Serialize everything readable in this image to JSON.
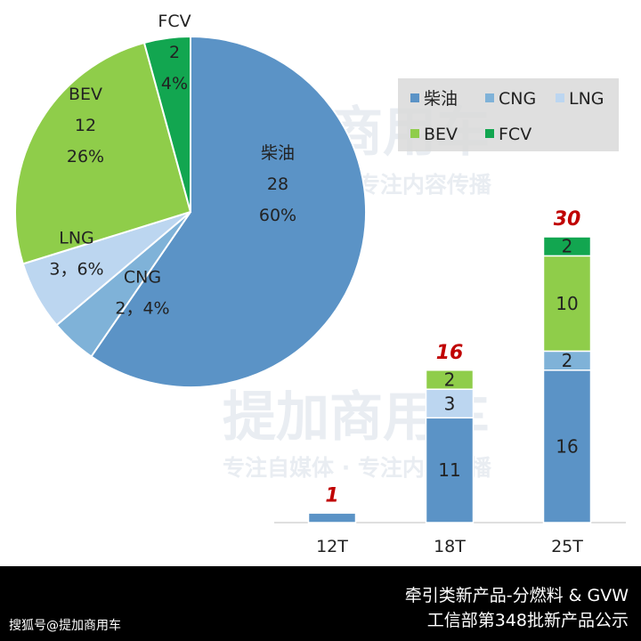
{
  "watermark": {
    "brand": "提加商用车",
    "slogan": "专注自媒体 · 专注内容传播"
  },
  "footer": {
    "line1": "牵引类新产品-分燃料 & GVW",
    "line2": "工信部第348批新产品公示",
    "credit": "搜狐号@提加商用车",
    "background": "#000000"
  },
  "chart_data": [
    {
      "type": "pie",
      "slices": [
        {
          "name": "柴油",
          "value": 28,
          "percent": "60%",
          "label_lines": [
            "柴油",
            "28",
            "60%"
          ],
          "color": "#5b93c6"
        },
        {
          "name": "CNG",
          "value": 2,
          "percent": "4%",
          "label_lines": [
            "CNG",
            "2，4%"
          ],
          "color": "#7fb2d8"
        },
        {
          "name": "LNG",
          "value": 3,
          "percent": "6%",
          "label_lines": [
            "LNG",
            "3，6%"
          ],
          "color": "#bcd6f0"
        },
        {
          "name": "BEV",
          "value": 12,
          "percent": "26%",
          "label_lines": [
            "BEV",
            "12",
            "26%"
          ],
          "color": "#8fcd4a"
        },
        {
          "name": "FCV",
          "value": 2,
          "percent": "4%",
          "label_lines": [
            "FCV",
            "2",
            "4%"
          ],
          "color": "#12a650"
        }
      ],
      "legend": {
        "placement": "top-right",
        "entries": [
          "柴油",
          "CNG",
          "LNG",
          "BEV",
          "FCV"
        ],
        "colors": [
          "#5b93c6",
          "#7fb2d8",
          "#bcd6f0",
          "#8fcd4a",
          "#12a650"
        ]
      }
    },
    {
      "type": "bar",
      "stacked": true,
      "categories": [
        "12T",
        "18T",
        "25T"
      ],
      "series": [
        {
          "name": "柴油",
          "values": [
            1,
            11,
            16
          ],
          "labels": [
            "",
            "11",
            "16"
          ],
          "color": "#5b93c6"
        },
        {
          "name": "CNG",
          "values": [
            0,
            0,
            2
          ],
          "labels": [
            "",
            "",
            "2"
          ],
          "color": "#7fb2d8"
        },
        {
          "name": "LNG",
          "values": [
            0,
            3,
            0
          ],
          "labels": [
            "",
            "3",
            ""
          ],
          "color": "#bcd6f0"
        },
        {
          "name": "BEV",
          "values": [
            0,
            2,
            10
          ],
          "labels": [
            "",
            "2",
            "10"
          ],
          "color": "#8fcd4a"
        },
        {
          "name": "FCV",
          "values": [
            0,
            0,
            2
          ],
          "labels": [
            "",
            "",
            "2"
          ],
          "color": "#12a650"
        }
      ],
      "totals": [
        "1",
        "16",
        "30"
      ],
      "total_label_color": "#c00000"
    }
  ]
}
